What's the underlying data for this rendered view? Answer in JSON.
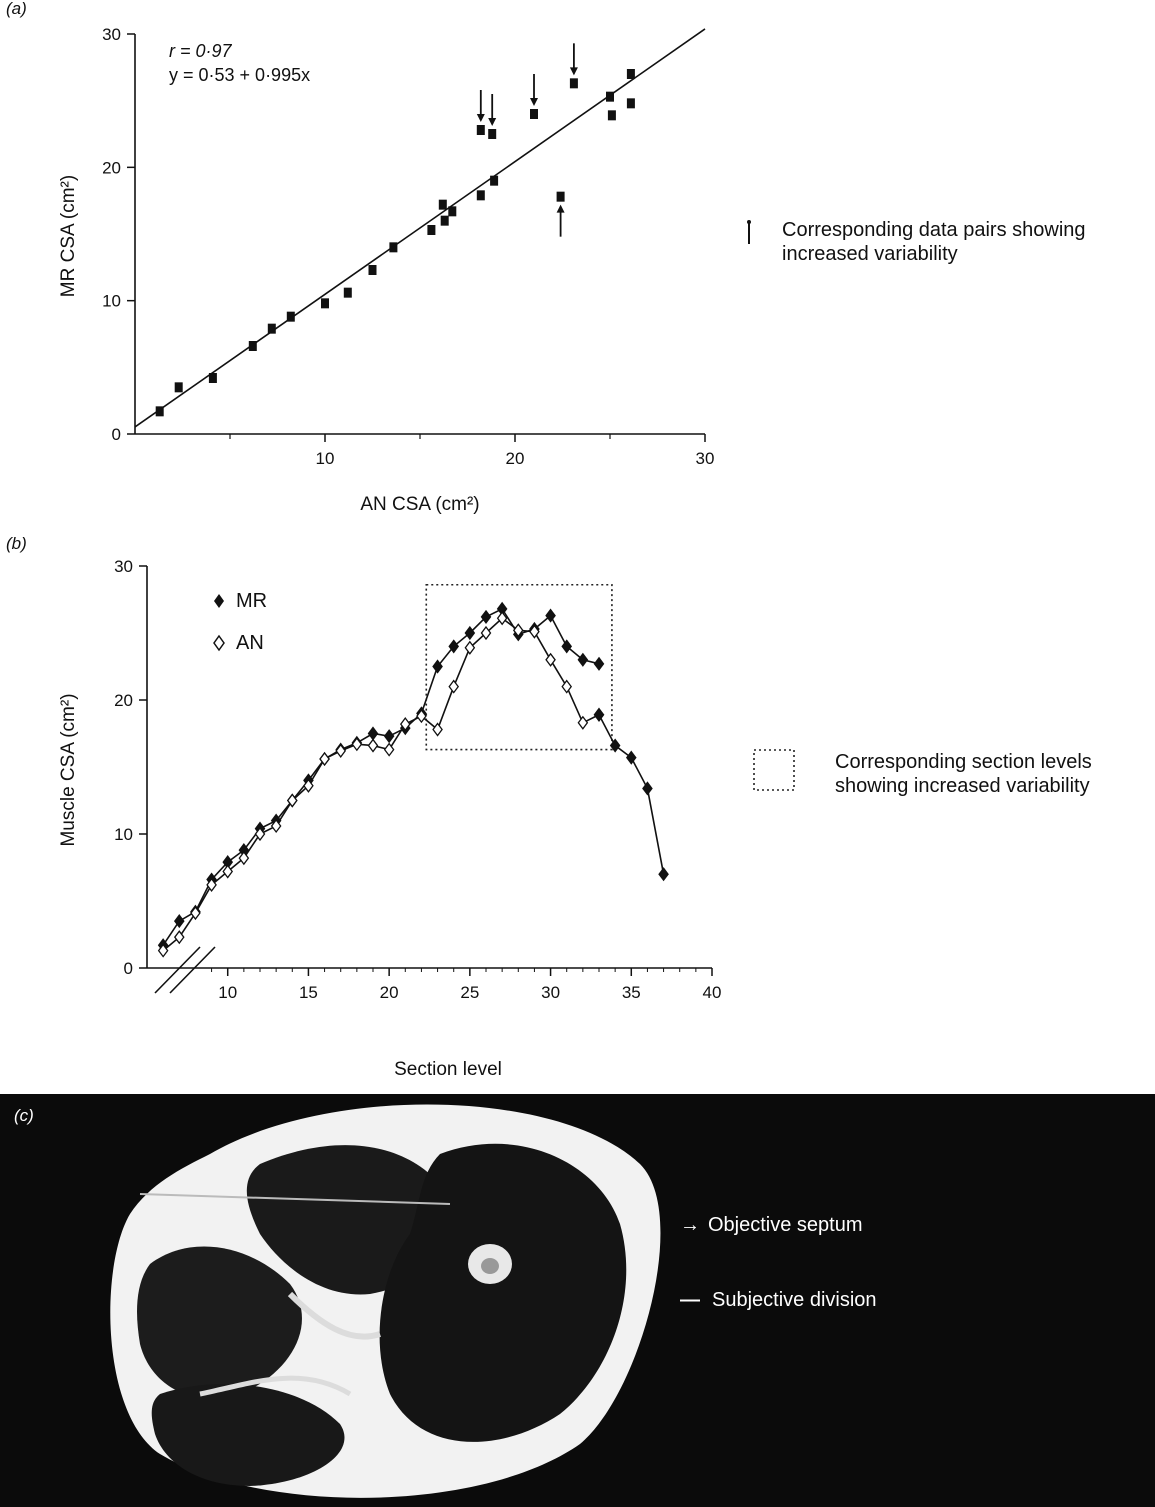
{
  "chart_data": [
    {
      "panel_label": "(a)",
      "type": "scatter",
      "xlabel": "AN CSA (cm²)",
      "ylabel": "MR CSA (cm²)",
      "xlim": [
        0,
        30
      ],
      "ylim": [
        0,
        30
      ],
      "xticks": [
        10,
        20,
        30
      ],
      "yticks": [
        0,
        10,
        20,
        30
      ],
      "annotation_r": "r = 0·97",
      "annotation_eq": "y = 0·53 + 0·995x",
      "regression": {
        "intercept": 0.53,
        "slope": 0.995
      },
      "points": [
        [
          1.3,
          1.7
        ],
        [
          2.3,
          3.5
        ],
        [
          4.1,
          4.2
        ],
        [
          6.2,
          6.6
        ],
        [
          7.2,
          7.9
        ],
        [
          8.2,
          8.8
        ],
        [
          10.0,
          9.8
        ],
        [
          11.2,
          10.6
        ],
        [
          12.5,
          12.3
        ],
        [
          13.6,
          14.0
        ],
        [
          15.6,
          15.3
        ],
        [
          16.2,
          17.2
        ],
        [
          16.3,
          16.0
        ],
        [
          16.7,
          16.7
        ],
        [
          18.2,
          17.9
        ],
        [
          18.2,
          22.8
        ],
        [
          18.8,
          22.5
        ],
        [
          18.9,
          19.0
        ],
        [
          21.0,
          24.0
        ],
        [
          22.4,
          17.8
        ],
        [
          23.1,
          26.3
        ],
        [
          25.0,
          25.3
        ],
        [
          25.1,
          23.9
        ],
        [
          26.1,
          27.0
        ],
        [
          26.1,
          24.8
        ]
      ],
      "flagged_points": [
        {
          "x": 18.2,
          "y": 22.8,
          "arrow": "down"
        },
        {
          "x": 18.8,
          "y": 22.5,
          "arrow": "down"
        },
        {
          "x": 21.0,
          "y": 24.0,
          "arrow": "down"
        },
        {
          "x": 23.1,
          "y": 26.3,
          "arrow": "down"
        },
        {
          "x": 22.4,
          "y": 17.8,
          "arrow": "up"
        }
      ],
      "legend": "Corresponding data pairs showing increased variability"
    },
    {
      "panel_label": "(b)",
      "type": "line",
      "xlabel": "Section level",
      "ylabel": "Muscle CSA (cm²)",
      "xlim": [
        5,
        40
      ],
      "ylim": [
        0,
        30
      ],
      "xticks": [
        10,
        15,
        20,
        25,
        30,
        35,
        40
      ],
      "yticks": [
        0,
        10,
        20,
        30
      ],
      "axis_break": true,
      "series": [
        {
          "name": "MR",
          "marker": "filled-diamond",
          "x": [
            6,
            7,
            8,
            9,
            10,
            11,
            12,
            13,
            14,
            15,
            16,
            17,
            18,
            19,
            20,
            21,
            22,
            23,
            24,
            25,
            26,
            27,
            28,
            29,
            30,
            31,
            32,
            33
          ],
          "values": [
            1.7,
            3.5,
            4.2,
            6.6,
            7.9,
            8.8,
            10.4,
            11.0,
            12.5,
            14.0,
            15.6,
            16.3,
            16.8,
            17.5,
            17.3,
            17.9,
            19.0,
            22.5,
            24.0,
            25.0,
            26.2,
            26.8,
            24.9,
            25.3,
            26.3,
            24.0,
            23.0,
            22.7
          ]
        },
        {
          "name": "AN",
          "marker": "open-diamond",
          "x": [
            6,
            7,
            8,
            9,
            10,
            11,
            12,
            13,
            14,
            15,
            16,
            17,
            18,
            19,
            20,
            21,
            22,
            23,
            24,
            25,
            26,
            27,
            28,
            29,
            30,
            31,
            32,
            33
          ],
          "values": [
            1.3,
            2.3,
            4.1,
            6.2,
            7.2,
            8.2,
            10.0,
            10.6,
            12.5,
            13.6,
            15.6,
            16.2,
            16.7,
            16.6,
            16.3,
            18.2,
            18.8,
            17.8,
            21.0,
            23.9,
            25.0,
            26.1,
            25.2,
            25.1,
            23.0,
            21.0,
            18.3,
            18.9
          ]
        },
        {
          "name": "",
          "marker": "filled-diamond",
          "x": [
            33,
            34,
            35,
            36,
            37
          ],
          "values": [
            18.9,
            16.6,
            15.7,
            13.4,
            7.0
          ]
        }
      ],
      "highlight_box": {
        "x": [
          22.3,
          33.8
        ],
        "y": [
          16.3,
          28.6
        ]
      },
      "legend_box_text": [
        "Corresponding section levels",
        "showing increased variability"
      ]
    }
  ],
  "photo_panel": {
    "panel_label": "(c)",
    "legend_arrow_text": "Objective septum",
    "legend_bar_text": "Subjective division",
    "arrow_glyph": "→",
    "bar_glyph": "—"
  }
}
